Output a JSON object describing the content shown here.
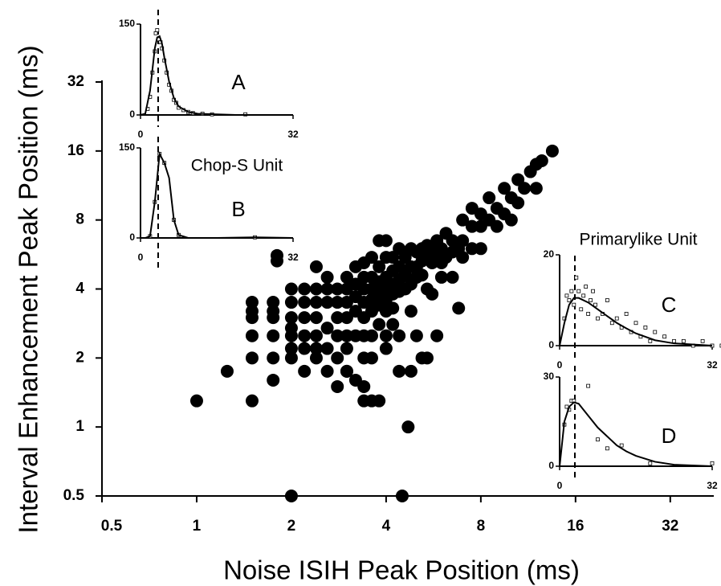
{
  "chart_data": [
    {
      "type": "scatter",
      "xlabel": "Noise ISIH Peak Position (ms)",
      "ylabel": "Interval Enhancement Peak Position (ms)",
      "xscale": "log2",
      "yscale": "log2",
      "color": "#000000",
      "xlim": [
        0.5,
        44
      ],
      "ylim": [
        0.5,
        32
      ],
      "xticks": [
        0.5,
        1,
        2,
        4,
        8,
        16,
        32
      ],
      "yticks": [
        0.5,
        1,
        2,
        4,
        8,
        16,
        32
      ],
      "x": [
        1,
        1.25,
        1.5,
        1.5,
        1.5,
        1.5,
        1.5,
        1.5,
        1.75,
        1.75,
        1.75,
        1.75,
        1.75,
        1.75,
        1.8,
        1.8,
        2,
        2,
        2,
        2,
        2,
        2,
        2,
        2,
        2.2,
        2.2,
        2.2,
        2.2,
        2.2,
        2.2,
        2.4,
        2.4,
        2.4,
        2.4,
        2.4,
        2.4,
        2.4,
        2.6,
        2.6,
        2.6,
        2.6,
        2.6,
        2.8,
        2.8,
        2.8,
        2.8,
        2.8,
        2.8,
        3,
        3,
        3,
        3,
        3,
        3,
        3,
        3.2,
        3.2,
        3.2,
        3.2,
        3.2,
        3.2,
        3.4,
        3.4,
        3.4,
        3.4,
        3.4,
        3.4,
        3.4,
        3.4,
        3.4,
        3.6,
        3.6,
        3.6,
        3.6,
        3.6,
        3.6,
        3.6,
        3.6,
        3.8,
        3.8,
        3.8,
        3.8,
        3.8,
        3.8,
        3.8,
        4,
        4,
        4,
        4,
        4,
        4,
        4,
        4,
        4.2,
        4.2,
        4.2,
        4.2,
        4.2,
        4.2,
        4.4,
        4.4,
        4.4,
        4.4,
        4.4,
        4.4,
        4.5,
        4.7,
        4.6,
        4.6,
        4.6,
        4.8,
        4.8,
        4.8,
        4.8,
        4.8,
        5,
        5,
        5,
        5,
        5.2,
        5.2,
        5.2,
        5.2,
        5.4,
        5.4,
        5.4,
        5.4,
        5.6,
        5.6,
        5.6,
        5.8,
        5.8,
        5.8,
        6,
        6,
        6,
        6.2,
        6.2,
        6.5,
        6.5,
        6.5,
        6.8,
        6.8,
        7,
        7,
        7,
        7.5,
        7.5,
        7.5,
        8,
        8,
        8,
        8.5,
        8.5,
        9,
        9,
        9.5,
        9.5,
        10,
        10,
        10.5,
        10.5,
        11,
        11.5,
        12,
        12,
        12.5,
        13.5,
        3,
        2.6
      ],
      "values": [
        1.3,
        1.75,
        3.5,
        3.2,
        3,
        2.5,
        2,
        1.3,
        3.5,
        3.2,
        3,
        2.5,
        2,
        1.6,
        5.6,
        5.3,
        4,
        3.5,
        3,
        2.7,
        2.5,
        2.2,
        2,
        0.5,
        4,
        3.5,
        3,
        2.5,
        2.2,
        1.75,
        5,
        4,
        3.5,
        3,
        2.5,
        2.2,
        2,
        4,
        3.5,
        2.7,
        2.2,
        1.75,
        4,
        3.5,
        3,
        2.5,
        2,
        1.5,
        4.5,
        4,
        3.5,
        3,
        2.5,
        2.2,
        1.75,
        5,
        4.2,
        3.7,
        3.2,
        2.5,
        1.6,
        5.2,
        4.5,
        4,
        3.5,
        3,
        2.5,
        2,
        1.5,
        1.3,
        5.5,
        4.5,
        4,
        3.6,
        3.2,
        2.5,
        2,
        1.3,
        6.5,
        5,
        4.3,
        3.8,
        3.4,
        2.8,
        1.3,
        6.5,
        5.5,
        4.5,
        4,
        3.6,
        3.2,
        2.5,
        2.2,
        5.5,
        4.8,
        4.2,
        3.8,
        3.3,
        2.8,
        6,
        5,
        4.4,
        3.9,
        2.5,
        1.75,
        0.5,
        1,
        5.5,
        4.6,
        4,
        6,
        5,
        4.2,
        3.2,
        1.75,
        5.8,
        5,
        4.5,
        2.5,
        6,
        5.3,
        4.6,
        2,
        6.2,
        5.5,
        4,
        2,
        6,
        5.2,
        3.8,
        6.5,
        5.5,
        2.5,
        6,
        5.2,
        4.5,
        7,
        5.5,
        6.5,
        5.8,
        4.5,
        6,
        3.3,
        8,
        6.5,
        5.5,
        9,
        7.5,
        6,
        8.5,
        7.5,
        6,
        10,
        8,
        9,
        7.5,
        11,
        8.5,
        10,
        8,
        12,
        9.5,
        11,
        13,
        14,
        11,
        14.5,
        16,
        1.75,
        4.5
      ]
    },
    {
      "type": "line",
      "label": "A",
      "vline": 3.7,
      "xlim": [
        0,
        32
      ],
      "ylim": [
        0,
        150
      ],
      "xticks": [
        0,
        32
      ],
      "yticks": [
        0,
        150
      ],
      "x": [
        0,
        1,
        2,
        3,
        3.5,
        4,
        4.5,
        5,
        6,
        7,
        8,
        10,
        12,
        16,
        20,
        32
      ],
      "values": [
        0,
        2,
        40,
        110,
        128,
        130,
        118,
        95,
        55,
        28,
        14,
        5,
        2,
        1,
        0,
        0
      ],
      "markers": {
        "x": [
          1.5,
          2,
          2.5,
          3,
          3.2,
          3.5,
          3.8,
          4.2,
          4.5,
          5,
          5.5,
          6,
          6.5,
          7,
          7.5,
          8,
          9,
          10,
          11,
          13,
          15,
          22
        ],
        "values": [
          10,
          30,
          70,
          105,
          135,
          140,
          125,
          120,
          110,
          90,
          70,
          50,
          40,
          25,
          20,
          12,
          8,
          5,
          3,
          2,
          1,
          1
        ]
      }
    },
    {
      "type": "line",
      "label": "B",
      "unit": "Chop-S Unit",
      "vline": 3.7,
      "xlim": [
        0,
        32
      ],
      "ylim": [
        0,
        150
      ],
      "xticks": [
        0,
        32
      ],
      "yticks": [
        0,
        150
      ],
      "x": [
        0,
        1,
        2,
        3,
        4,
        5,
        6,
        7,
        8,
        10,
        16,
        24,
        32
      ],
      "values": [
        0,
        0,
        3,
        60,
        140,
        125,
        100,
        30,
        5,
        0,
        0,
        1,
        0
      ],
      "markers": {
        "x": [
          2,
          3,
          4,
          5,
          7,
          8,
          24
        ],
        "values": [
          3,
          60,
          140,
          125,
          30,
          5,
          1
        ]
      }
    },
    {
      "type": "line",
      "label": "C",
      "unit": "Primarylike Unit",
      "vline": 3.2,
      "xlim": [
        0,
        32
      ],
      "ylim": [
        0,
        20
      ],
      "xticks": [
        0,
        32
      ],
      "yticks": [
        0,
        20
      ],
      "x": [
        0,
        1,
        2,
        3,
        4,
        6,
        8,
        10,
        12,
        14,
        16,
        20,
        24,
        32
      ],
      "values": [
        0,
        5,
        9,
        10.5,
        10.5,
        9.5,
        8,
        6.5,
        5,
        3.8,
        2.7,
        1.2,
        0.5,
        0
      ],
      "markers": {
        "x": [
          1,
          1.5,
          2,
          2.5,
          3,
          3.5,
          4,
          4.5,
          5,
          5.5,
          6,
          6.5,
          7,
          7.5,
          8,
          9,
          10,
          11,
          12,
          13,
          14,
          15,
          16,
          17,
          18,
          19,
          20,
          22,
          24,
          26,
          28,
          30,
          32,
          34
        ],
        "values": [
          6,
          11,
          10,
          12,
          9,
          15,
          12,
          8,
          11,
          13,
          7,
          10,
          12,
          9,
          6,
          7,
          10,
          5,
          6,
          4,
          7,
          3,
          5,
          2,
          4,
          1,
          3,
          2,
          1,
          1,
          0,
          1,
          0,
          0
        ]
      }
    },
    {
      "type": "line",
      "label": "D",
      "vline": 3.2,
      "xlim": [
        0,
        32
      ],
      "ylim": [
        0,
        30
      ],
      "xticks": [
        0,
        32
      ],
      "yticks": [
        0,
        30
      ],
      "x": [
        0,
        1,
        2,
        3,
        4,
        6,
        8,
        10,
        12,
        14,
        16,
        20,
        24,
        32
      ],
      "values": [
        0,
        15,
        20,
        21.5,
        21,
        17,
        13,
        10,
        7,
        5,
        3.5,
        1.5,
        0.5,
        0
      ],
      "markers": {
        "x": [
          1,
          1.5,
          2,
          2.5,
          3,
          6,
          8,
          10,
          13,
          19,
          32
        ],
        "values": [
          14,
          20,
          19,
          22,
          22,
          27,
          9,
          6,
          7,
          1,
          1
        ]
      }
    }
  ]
}
